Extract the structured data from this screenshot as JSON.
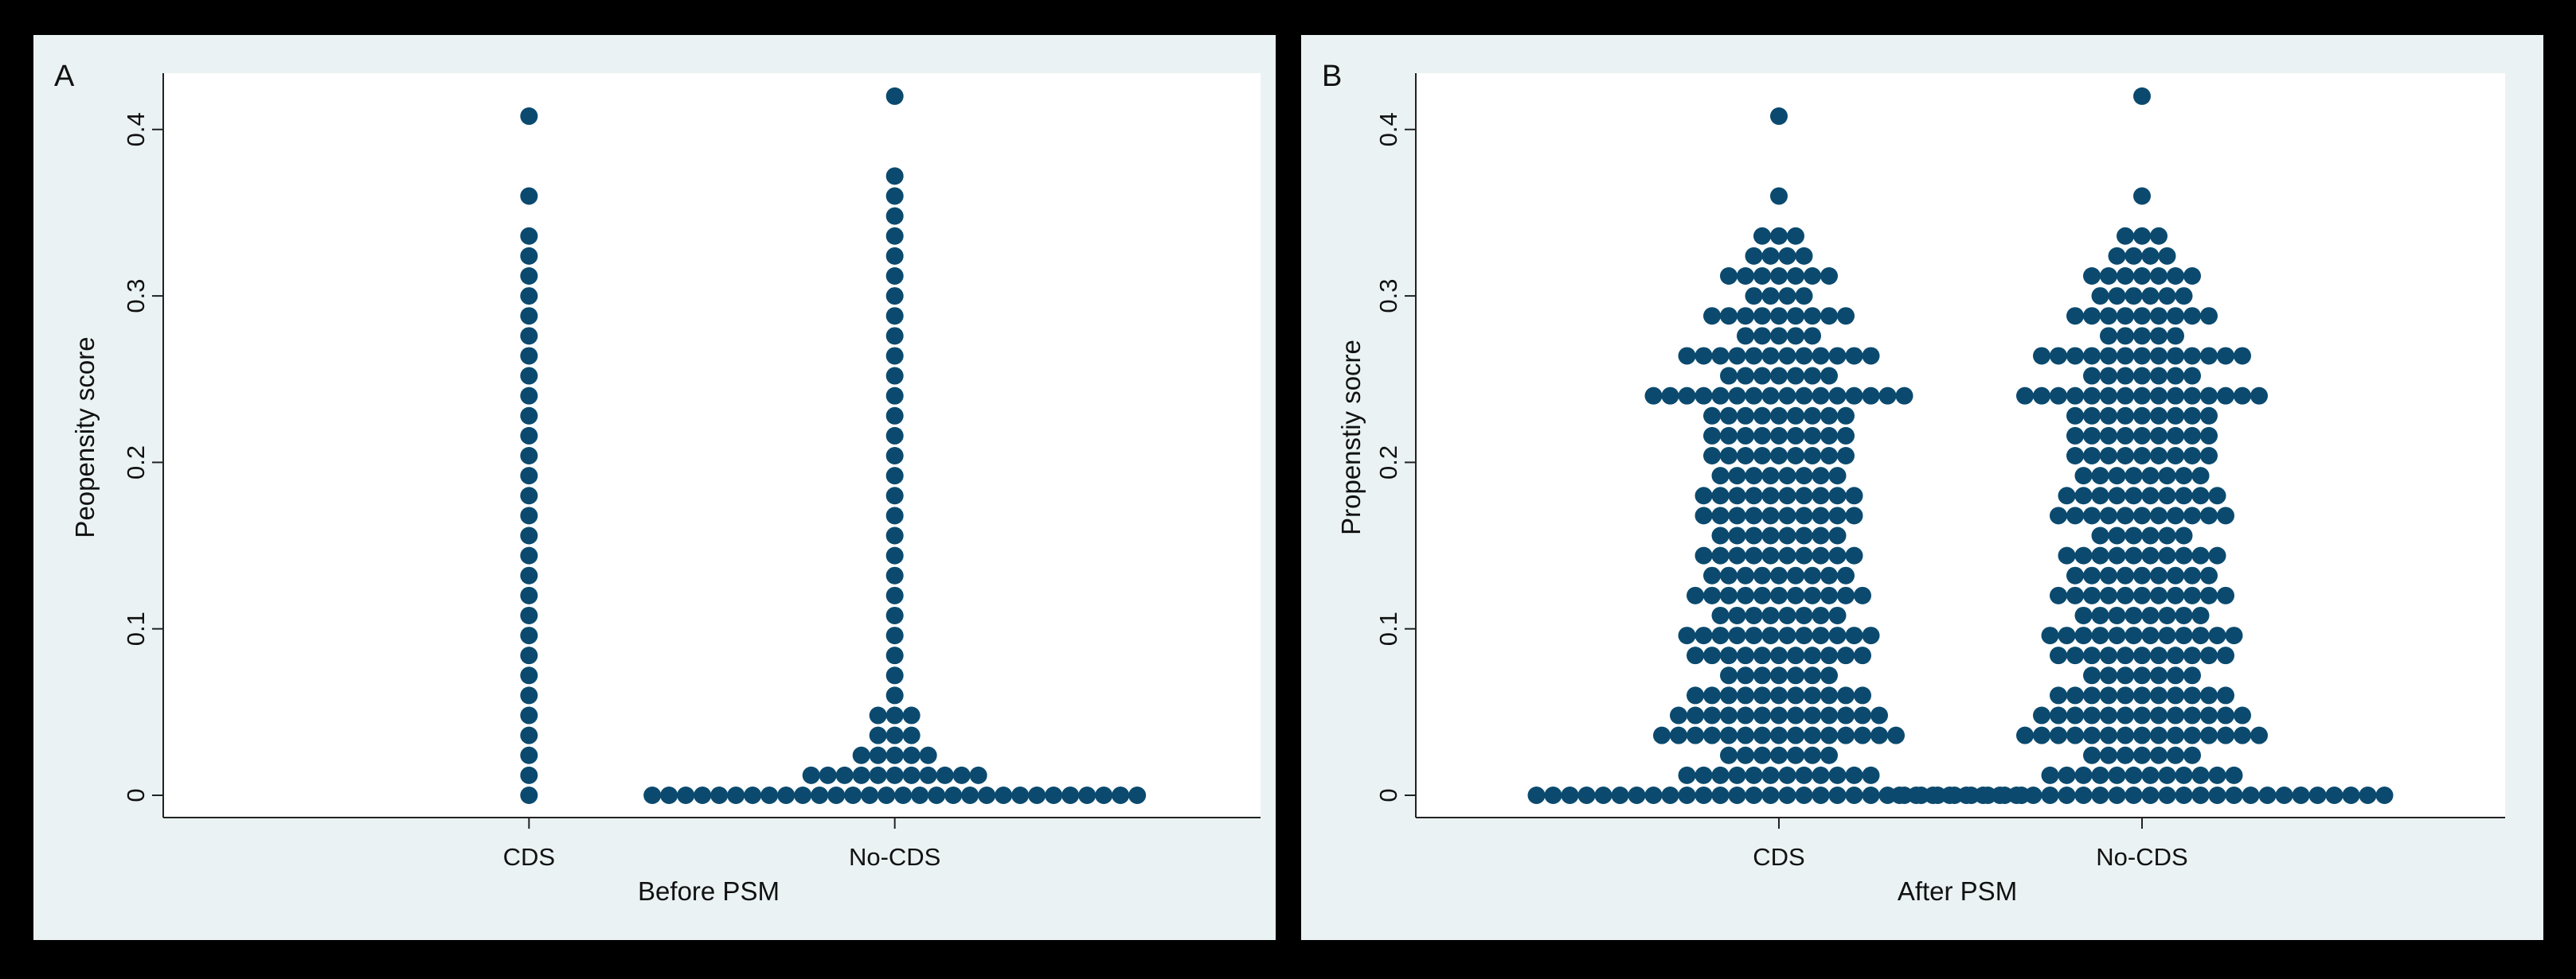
{
  "colors": {
    "background": "#000000",
    "panel": "#eaf2f3",
    "plot": "#ffffff",
    "dot": "#0b4a6e",
    "axis": "#222222"
  },
  "chart_data": [
    {
      "type": "scatter",
      "subtype": "dot plot",
      "panel_label": "A",
      "title": "",
      "xlabel": "Before PSM",
      "ylabel": "Peopensity score",
      "categories": [
        "CDS",
        "No-CDS"
      ],
      "ylim": [
        0,
        0.43
      ],
      "yticks": [
        0,
        0.1,
        0.2,
        0.3,
        0.4
      ],
      "ytick_labels": [
        "0",
        "0.1",
        "0.2",
        "0.3",
        "0.4"
      ],
      "grid": false,
      "bin_width": 0.012,
      "series": [
        {
          "name": "CDS",
          "bins": [
            [
              0,
              1
            ],
            [
              0.012,
              1
            ],
            [
              0.024,
              1
            ],
            [
              0.036,
              1
            ],
            [
              0.048,
              1
            ],
            [
              0.06,
              1
            ],
            [
              0.072,
              1
            ],
            [
              0.084,
              1
            ],
            [
              0.096,
              1
            ],
            [
              0.108,
              1
            ],
            [
              0.12,
              1
            ],
            [
              0.132,
              1
            ],
            [
              0.144,
              1
            ],
            [
              0.156,
              1
            ],
            [
              0.168,
              1
            ],
            [
              0.18,
              1
            ],
            [
              0.192,
              1
            ],
            [
              0.204,
              1
            ],
            [
              0.216,
              1
            ],
            [
              0.228,
              1
            ],
            [
              0.24,
              1
            ],
            [
              0.252,
              1
            ],
            [
              0.264,
              1
            ],
            [
              0.276,
              1
            ],
            [
              0.288,
              1
            ],
            [
              0.3,
              1
            ],
            [
              0.312,
              1
            ],
            [
              0.324,
              1
            ],
            [
              0.336,
              1
            ],
            [
              0.36,
              1
            ],
            [
              0.408,
              1
            ]
          ]
        },
        {
          "name": "No-CDS",
          "bins": [
            [
              0,
              30
            ],
            [
              0.012,
              11
            ],
            [
              0.024,
              5
            ],
            [
              0.036,
              3
            ],
            [
              0.048,
              3
            ],
            [
              0.06,
              1
            ],
            [
              0.072,
              1
            ],
            [
              0.084,
              1
            ],
            [
              0.096,
              1
            ],
            [
              0.108,
              1
            ],
            [
              0.12,
              1
            ],
            [
              0.132,
              1
            ],
            [
              0.144,
              1
            ],
            [
              0.156,
              1
            ],
            [
              0.168,
              1
            ],
            [
              0.18,
              1
            ],
            [
              0.192,
              1
            ],
            [
              0.204,
              1
            ],
            [
              0.216,
              1
            ],
            [
              0.228,
              1
            ],
            [
              0.24,
              1
            ],
            [
              0.252,
              1
            ],
            [
              0.264,
              1
            ],
            [
              0.276,
              1
            ],
            [
              0.288,
              1
            ],
            [
              0.3,
              1
            ],
            [
              0.312,
              1
            ],
            [
              0.324,
              1
            ],
            [
              0.336,
              1
            ],
            [
              0.348,
              1
            ],
            [
              0.36,
              1
            ],
            [
              0.372,
              1
            ],
            [
              0.42,
              1
            ]
          ]
        }
      ]
    },
    {
      "type": "scatter",
      "subtype": "dot plot",
      "panel_label": "B",
      "title": "",
      "xlabel": "After PSM",
      "ylabel": "Propenstiy socre",
      "categories": [
        "CDS",
        "No-CDS"
      ],
      "ylim": [
        0,
        0.43
      ],
      "yticks": [
        0,
        0.1,
        0.2,
        0.3,
        0.4
      ],
      "ytick_labels": [
        "0",
        "0.1",
        "0.2",
        "0.3",
        "0.4"
      ],
      "grid": false,
      "bin_width": 0.012,
      "series": [
        {
          "name": "CDS",
          "bins": [
            [
              0,
              30
            ],
            [
              0.012,
              12
            ],
            [
              0.024,
              7
            ],
            [
              0.036,
              15
            ],
            [
              0.048,
              13
            ],
            [
              0.06,
              11
            ],
            [
              0.072,
              7
            ],
            [
              0.084,
              11
            ],
            [
              0.096,
              12
            ],
            [
              0.108,
              8
            ],
            [
              0.12,
              11
            ],
            [
              0.132,
              9
            ],
            [
              0.144,
              10
            ],
            [
              0.156,
              8
            ],
            [
              0.168,
              10
            ],
            [
              0.18,
              10
            ],
            [
              0.192,
              8
            ],
            [
              0.204,
              9
            ],
            [
              0.216,
              9
            ],
            [
              0.228,
              9
            ],
            [
              0.24,
              16
            ],
            [
              0.252,
              7
            ],
            [
              0.264,
              12
            ],
            [
              0.276,
              5
            ],
            [
              0.288,
              9
            ],
            [
              0.3,
              4
            ],
            [
              0.312,
              7
            ],
            [
              0.324,
              4
            ],
            [
              0.336,
              3
            ],
            [
              0.36,
              1
            ],
            [
              0.408,
              1
            ]
          ]
        },
        {
          "name": "No-CDS",
          "bins": [
            [
              0,
              30
            ],
            [
              0.012,
              12
            ],
            [
              0.024,
              7
            ],
            [
              0.036,
              15
            ],
            [
              0.048,
              13
            ],
            [
              0.06,
              11
            ],
            [
              0.072,
              7
            ],
            [
              0.084,
              11
            ],
            [
              0.096,
              12
            ],
            [
              0.108,
              8
            ],
            [
              0.12,
              11
            ],
            [
              0.132,
              9
            ],
            [
              0.144,
              10
            ],
            [
              0.156,
              6
            ],
            [
              0.168,
              11
            ],
            [
              0.18,
              10
            ],
            [
              0.192,
              8
            ],
            [
              0.204,
              9
            ],
            [
              0.216,
              9
            ],
            [
              0.228,
              9
            ],
            [
              0.24,
              15
            ],
            [
              0.252,
              7
            ],
            [
              0.264,
              13
            ],
            [
              0.276,
              5
            ],
            [
              0.288,
              9
            ],
            [
              0.3,
              6
            ],
            [
              0.312,
              7
            ],
            [
              0.324,
              4
            ],
            [
              0.336,
              3
            ],
            [
              0.36,
              1
            ],
            [
              0.42,
              1
            ]
          ]
        }
      ]
    }
  ]
}
